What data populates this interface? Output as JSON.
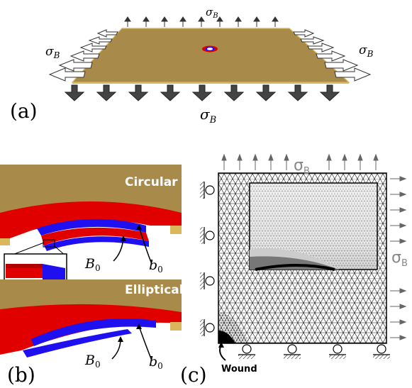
{
  "panel_a": {
    "label": "(a)",
    "stress_symbol": "σ",
    "stress_subscript": "B"
  },
  "panel_b": {
    "label": "(b)",
    "top_title": "Circular",
    "bottom_title": "Elliptical",
    "inner_radius_symbol": "B",
    "inner_radius_subscript": "0",
    "outer_radius_symbol": "b",
    "outer_radius_subscript": "0"
  },
  "panel_c": {
    "label": "(c)",
    "stress_symbol": "σ",
    "stress_subscript": "B",
    "wound_label": "Wound"
  },
  "colors": {
    "plate_tan": "#a88a4a",
    "plate_edge": "#d9b75a",
    "tissue_red": "#e00000",
    "wound_blue": "#1f10f0",
    "arrow_dark": "#333333",
    "label_gray": "#888888"
  }
}
